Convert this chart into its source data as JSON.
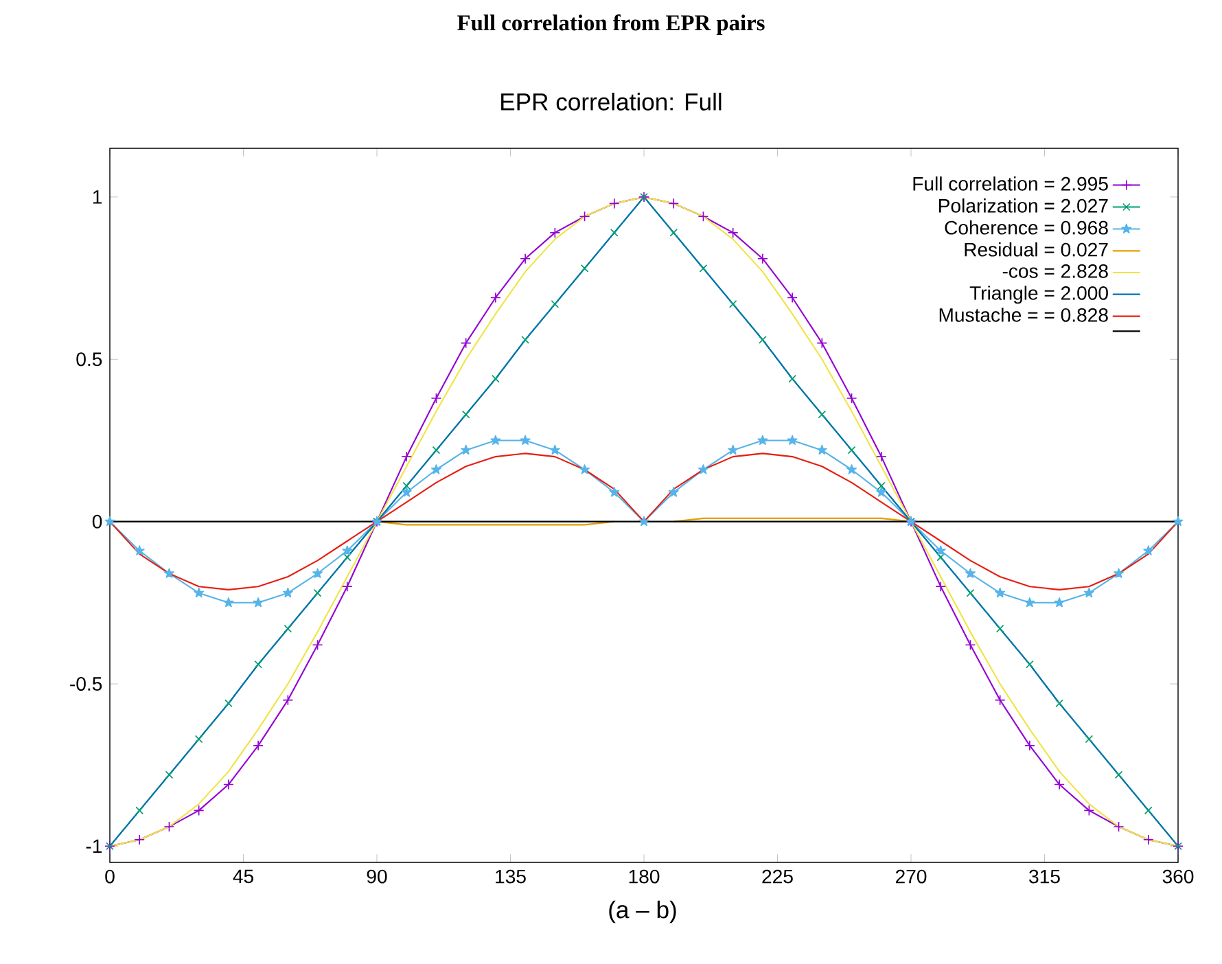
{
  "chart_data": {
    "type": "line",
    "title": "Full correlation from EPR pairs",
    "subtitle": "EPR correlation: Full",
    "xlabel": "(a – b)",
    "x": [
      0,
      10,
      20,
      30,
      40,
      50,
      60,
      70,
      80,
      90,
      100,
      110,
      120,
      130,
      140,
      150,
      160,
      170,
      180,
      190,
      200,
      210,
      220,
      230,
      240,
      250,
      260,
      270,
      280,
      290,
      300,
      310,
      320,
      330,
      340,
      350,
      360
    ],
    "xlim": [
      0,
      360
    ],
    "xticks": [
      0,
      45,
      90,
      135,
      180,
      225,
      270,
      315,
      360
    ],
    "ylim": [
      -1.05,
      1.15
    ],
    "yticks": [
      -1,
      -0.5,
      0,
      0.5,
      1
    ],
    "legend": "top right",
    "grid": false,
    "series": [
      {
        "name": "Full correlation = 2.995",
        "color": "#9400d3",
        "marker": "plus",
        "values": [
          -1,
          -0.98,
          -0.94,
          -0.89,
          -0.81,
          -0.69,
          -0.55,
          -0.38,
          -0.2,
          0,
          0.2,
          0.38,
          0.55,
          0.69,
          0.81,
          0.89,
          0.94,
          0.98,
          1,
          0.98,
          0.94,
          0.89,
          0.81,
          0.69,
          0.55,
          0.38,
          0.2,
          0,
          -0.2,
          -0.38,
          -0.55,
          -0.69,
          -0.81,
          -0.89,
          -0.94,
          -0.98,
          -1
        ]
      },
      {
        "name": "Polarization = 2.027",
        "color": "#009e73",
        "marker": "cross",
        "values": [
          -1,
          -0.89,
          -0.78,
          -0.67,
          -0.56,
          -0.44,
          -0.33,
          -0.22,
          -0.11,
          0,
          0.11,
          0.22,
          0.33,
          0.44,
          0.56,
          0.67,
          0.78,
          0.89,
          1,
          0.89,
          0.78,
          0.67,
          0.56,
          0.44,
          0.33,
          0.22,
          0.11,
          0,
          -0.11,
          -0.22,
          -0.33,
          -0.44,
          -0.56,
          -0.67,
          -0.78,
          -0.89,
          -1
        ]
      },
      {
        "name": "Coherence = 0.968",
        "color": "#56b4e9",
        "marker": "star",
        "values": [
          0,
          -0.09,
          -0.16,
          -0.22,
          -0.25,
          -0.25,
          -0.22,
          -0.16,
          -0.09,
          0,
          0.09,
          0.16,
          0.22,
          0.25,
          0.25,
          0.22,
          0.16,
          0.09,
          0,
          0.09,
          0.16,
          0.22,
          0.25,
          0.25,
          0.22,
          0.16,
          0.09,
          0,
          -0.09,
          -0.16,
          -0.22,
          -0.25,
          -0.25,
          -0.22,
          -0.16,
          -0.09,
          0
        ]
      },
      {
        "name": "Residual = 0.027",
        "color": "#e69f00",
        "values": [
          null,
          null,
          null,
          null,
          null,
          null,
          null,
          null,
          null,
          0,
          -0.01,
          -0.01,
          -0.01,
          -0.01,
          -0.01,
          -0.01,
          -0.01,
          0,
          null,
          0,
          0.01,
          0.01,
          0.01,
          0.01,
          0.01,
          0.01,
          0.01,
          0,
          null,
          null,
          null,
          null,
          null,
          null,
          null,
          null,
          null
        ]
      },
      {
        "name": "-cos = 2.828",
        "color": "#f0e442",
        "values": [
          -1,
          -0.98,
          -0.94,
          -0.87,
          -0.77,
          -0.64,
          -0.5,
          -0.34,
          -0.17,
          0,
          0.17,
          0.34,
          0.5,
          0.64,
          0.77,
          0.87,
          0.94,
          0.98,
          1,
          0.98,
          0.94,
          0.87,
          0.77,
          0.64,
          0.5,
          0.34,
          0.17,
          0,
          -0.17,
          -0.34,
          -0.5,
          -0.64,
          -0.77,
          -0.87,
          -0.94,
          -0.98,
          -1
        ]
      },
      {
        "name": "Triangle = 2.000",
        "color": "#0072b2",
        "values": [
          -1,
          -0.89,
          -0.78,
          -0.67,
          -0.56,
          -0.44,
          -0.33,
          -0.22,
          -0.11,
          0,
          0.11,
          0.22,
          0.33,
          0.44,
          0.56,
          0.67,
          0.78,
          0.89,
          1,
          0.89,
          0.78,
          0.67,
          0.56,
          0.44,
          0.33,
          0.22,
          0.11,
          0,
          -0.11,
          -0.22,
          -0.33,
          -0.44,
          -0.56,
          -0.67,
          -0.78,
          -0.89,
          -1
        ]
      },
      {
        "name": "Mustache = = 0.828",
        "color": "#e51e10",
        "values": [
          0,
          -0.1,
          -0.16,
          -0.2,
          -0.21,
          -0.2,
          -0.17,
          -0.12,
          -0.06,
          0,
          0.06,
          0.12,
          0.17,
          0.2,
          0.21,
          0.2,
          0.16,
          0.1,
          0,
          0.1,
          0.16,
          0.2,
          0.21,
          0.2,
          0.17,
          0.12,
          0.06,
          0,
          -0.06,
          -0.12,
          -0.17,
          -0.2,
          -0.21,
          -0.2,
          -0.16,
          -0.1,
          0
        ]
      },
      {
        "color": "#000000",
        "x": [
          0,
          360
        ],
        "values": [
          0,
          0
        ]
      }
    ]
  }
}
